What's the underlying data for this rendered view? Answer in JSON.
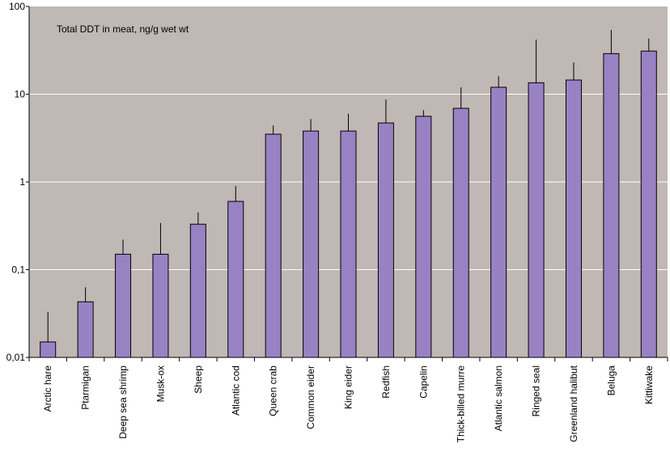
{
  "chart_data": {
    "type": "bar",
    "title": "Total DDT in meat, ng/g wet wt",
    "xlabel": "",
    "ylabel": "",
    "yscale": "log",
    "ylim": [
      0.01,
      100
    ],
    "yticks": [
      {
        "value": 0.01,
        "label": "0,01"
      },
      {
        "value": 0.1,
        "label": "0,1"
      },
      {
        "value": 1,
        "label": "1"
      },
      {
        "value": 10,
        "label": "10"
      },
      {
        "value": 100,
        "label": "100"
      }
    ],
    "grid": "horizontal",
    "legend": "none",
    "categories": [
      "Arctic hare",
      "Ptarmigan",
      "Deep sea shrimp",
      "Musk-ox",
      "Sheep",
      "Atlantic cod",
      "Queen crab",
      "Common eider",
      "King eider",
      "Redfish",
      "Capelin",
      "Thick-billed murre",
      "Atlantic salmon",
      "Ringed seal",
      "Greenland halibut",
      "Beluga",
      "Kittiwake"
    ],
    "values": [
      0.015,
      0.043,
      0.15,
      0.15,
      0.33,
      0.6,
      3.5,
      3.8,
      3.8,
      4.7,
      5.6,
      6.9,
      12,
      13.5,
      14.5,
      29,
      31
    ],
    "error_upper": [
      0.033,
      0.063,
      0.22,
      0.34,
      0.45,
      0.9,
      4.4,
      5.2,
      6.0,
      8.7,
      6.6,
      12,
      16,
      42,
      23,
      54,
      43
    ],
    "colors": {
      "bar": "#9982c3",
      "bar_stroke": "#000000",
      "plot_background": "#c0b8b4",
      "grid": "#ffffff",
      "error_bar": "#000000"
    }
  }
}
